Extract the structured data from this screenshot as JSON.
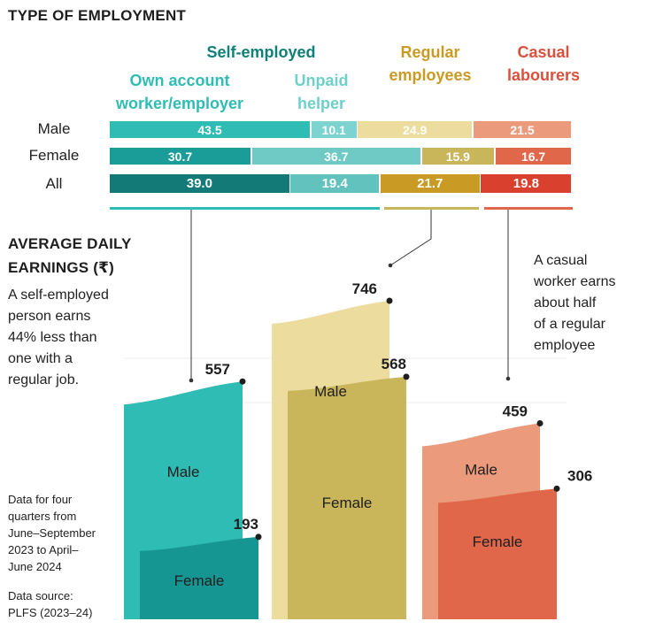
{
  "title": "TYPE OF EMPLOYMENT",
  "headers": {
    "self_employed": "Self-employed",
    "own_account_1": "Own account",
    "own_account_2": "worker/employer",
    "unpaid_1": "Unpaid",
    "unpaid_2": "helper",
    "regular_1": "Regular",
    "regular_2": "employees",
    "casual_1": "Casual",
    "casual_2": "labourers"
  },
  "colors": {
    "self_employed_header": "#0f7f7a",
    "own_account_header": "#2fbcb5",
    "unpaid_header": "#6fcfca",
    "regular_header": "#c99a24",
    "casual_header": "#d9513c"
  },
  "earnings_section": {
    "title_1": "AVERAGE DAILY",
    "title_2": "EARNINGS (₹)",
    "note_self_1": "A self-employed",
    "note_self_2": "person earns",
    "note_self_3": "44% less than",
    "note_self_4": "one with a",
    "note_self_5": "regular job.",
    "note_casual_1": "A casual",
    "note_casual_2": "worker earns",
    "note_casual_3": "about half",
    "note_casual_4": "of a regular",
    "note_casual_5": "employee",
    "footnote_1": "Data for four",
    "footnote_2": "quarters from",
    "footnote_3": "June–September",
    "footnote_4": "2023 to April–",
    "footnote_5": "June 2024",
    "source_1": "Data source:",
    "source_2": "PLFS (2023–24)"
  },
  "chart_data": [
    {
      "type": "bar",
      "orientation": "horizontal-stacked",
      "title": "TYPE OF EMPLOYMENT",
      "categories": [
        "Male",
        "Female",
        "All"
      ],
      "series": [
        {
          "name": "Own account worker/employer",
          "group": "Self-employed",
          "values": [
            43.5,
            30.7,
            39.0
          ],
          "colors": [
            "#2fbcb5",
            "#1a9c98",
            "#137a78"
          ]
        },
        {
          "name": "Unpaid helper",
          "group": "Self-employed",
          "values": [
            10.1,
            36.7,
            19.4
          ],
          "colors": [
            "#7dd3cf",
            "#6fcac5",
            "#62c2bd"
          ]
        },
        {
          "name": "Regular employees",
          "values": [
            24.9,
            15.9,
            21.7
          ],
          "colors": [
            "#ecdc9e",
            "#c9b55a",
            "#c99a24"
          ]
        },
        {
          "name": "Casual labourers",
          "values": [
            21.5,
            16.7,
            19.8
          ],
          "colors": [
            "#eb9a7c",
            "#e0674a",
            "#d9412e"
          ]
        }
      ],
      "unit": "%"
    },
    {
      "type": "bar",
      "title": "AVERAGE DAILY EARNINGS (₹)",
      "groups": [
        "Self-employed",
        "Regular employees",
        "Casual labourers"
      ],
      "series": [
        {
          "name": "Male",
          "values": [
            557,
            746,
            459
          ],
          "colors": [
            "#2fbcb5",
            "#ecdc9e",
            "#eb9a7c"
          ]
        },
        {
          "name": "Female",
          "values": [
            193,
            568,
            306
          ],
          "colors": [
            "#169693",
            "#c9b55a",
            "#e0674a"
          ]
        }
      ],
      "ylim": [
        0,
        746
      ]
    }
  ]
}
